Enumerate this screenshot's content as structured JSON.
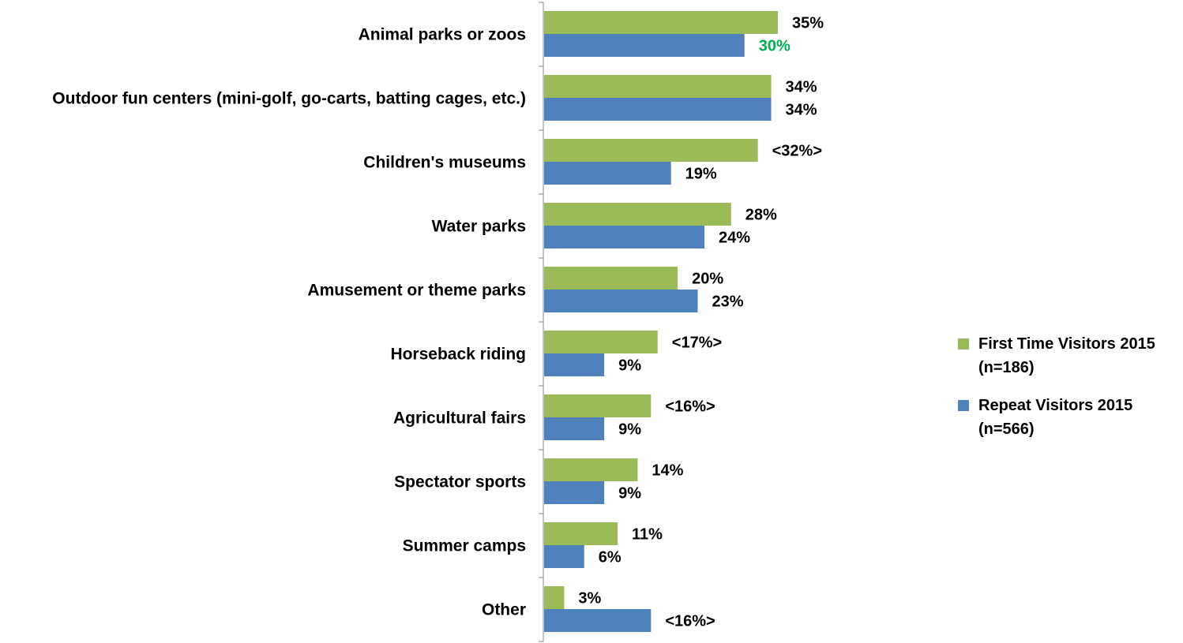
{
  "chart_data": {
    "type": "bar",
    "orientation": "horizontal",
    "title": "",
    "xlabel": "",
    "ylabel": "",
    "xlim": [
      0,
      35
    ],
    "grid": false,
    "legend_position": "right",
    "categories": [
      "Animal parks or zoos",
      "Outdoor fun centers (mini-golf, go-carts, batting cages, etc.)",
      "Children's museums",
      "Water parks",
      "Amusement or theme parks",
      "Horseback riding",
      "Agricultural fairs",
      "Spectator sports",
      "Summer camps",
      "Other"
    ],
    "series": [
      {
        "name": "First Time Visitors 2015",
        "legend_lines": [
          "First Time Visitors 2015",
          "(n=186)"
        ],
        "color": "#9BBB59",
        "values": [
          35,
          34,
          32,
          28,
          20,
          17,
          16,
          14,
          11,
          3
        ],
        "labels": [
          "35%",
          "34%",
          "<32%>",
          "28%",
          "20%",
          "<17%>",
          "<16%>",
          "14%",
          "11%",
          "3%"
        ],
        "label_colors": [
          "#000000",
          "#000000",
          "#000000",
          "#000000",
          "#000000",
          "#000000",
          "#000000",
          "#000000",
          "#000000",
          "#000000"
        ]
      },
      {
        "name": "Repeat Visitors 2015",
        "legend_lines": [
          "Repeat Visitors 2015",
          "(n=566)"
        ],
        "color": "#4F81BD",
        "values": [
          30,
          34,
          19,
          24,
          23,
          9,
          9,
          9,
          6,
          16
        ],
        "labels": [
          "30%",
          "34%",
          "19%",
          "24%",
          "23%",
          "9%",
          "9%",
          "9%",
          "6%",
          "<16%>"
        ],
        "label_colors": [
          "#00B050",
          "#000000",
          "#000000",
          "#000000",
          "#000000",
          "#000000",
          "#000000",
          "#000000",
          "#000000",
          "#000000"
        ]
      }
    ]
  }
}
